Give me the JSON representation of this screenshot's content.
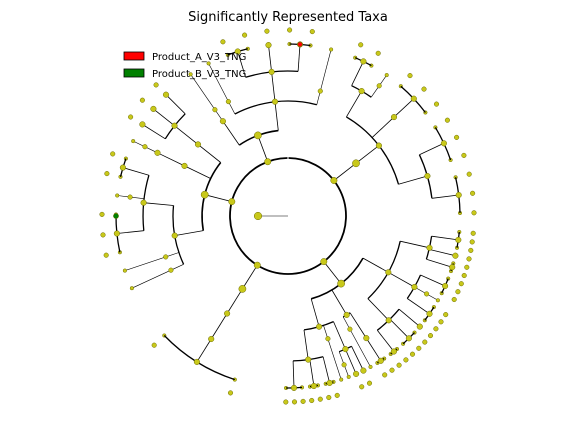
{
  "figure": {
    "title": "Significantly Represented Taxa",
    "type": "cladogram",
    "legend_placement": "top-left",
    "legend": [
      {
        "label": "Product_A_V3_TNG",
        "color": "#ff0000"
      },
      {
        "label": "Product_B_V3_TNG",
        "color": "#008000"
      }
    ],
    "node_color": "#c8c81a",
    "branch_color": "#000000",
    "highlighted_taxa": [
      {
        "group": "Product_A_V3_TNG",
        "position": "top"
      },
      {
        "group": "Product_B_V3_TNG",
        "position": "left"
      }
    ]
  }
}
